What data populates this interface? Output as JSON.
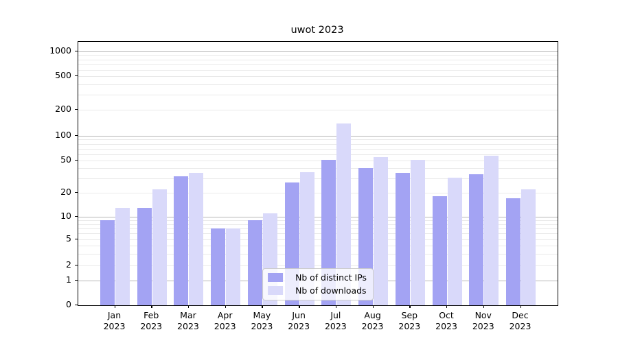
{
  "title": "uwot 2023",
  "chart_data": {
    "type": "bar",
    "title": "uwot 2023",
    "yscale": "symlog",
    "ylim": [
      0,
      1300
    ],
    "grid": true,
    "legend_position": "lower center",
    "year": "2023",
    "categories": [
      "Jan",
      "Feb",
      "Mar",
      "Apr",
      "May",
      "Jun",
      "Jul",
      "Aug",
      "Sep",
      "Oct",
      "Nov",
      "Dec"
    ],
    "yticks": [
      0,
      1,
      2,
      5,
      10,
      20,
      50,
      100,
      200,
      500,
      1000
    ],
    "major_grid_values": [
      1,
      10,
      100,
      1000
    ],
    "minor_grid_values": [
      2,
      3,
      4,
      5,
      6,
      7,
      8,
      9,
      20,
      30,
      40,
      50,
      60,
      70,
      80,
      90,
      200,
      300,
      400,
      500,
      600,
      700,
      800,
      900
    ],
    "series": [
      {
        "name": "Nb of distinct IPs",
        "color": "#a3a3f3",
        "values": [
          9,
          13,
          32,
          7,
          9,
          27,
          51,
          40,
          35,
          18,
          34,
          17
        ]
      },
      {
        "name": "Nb of downloads",
        "color": "#d9d9fa",
        "values": [
          13,
          22,
          35,
          7,
          11,
          36,
          138,
          55,
          51,
          31,
          57,
          22
        ]
      }
    ],
    "colors": {
      "major_grid": "#b5b5b5",
      "minor_grid": "#e9e9e9",
      "axis": "#000000",
      "legend_border": "#cccccc"
    }
  }
}
